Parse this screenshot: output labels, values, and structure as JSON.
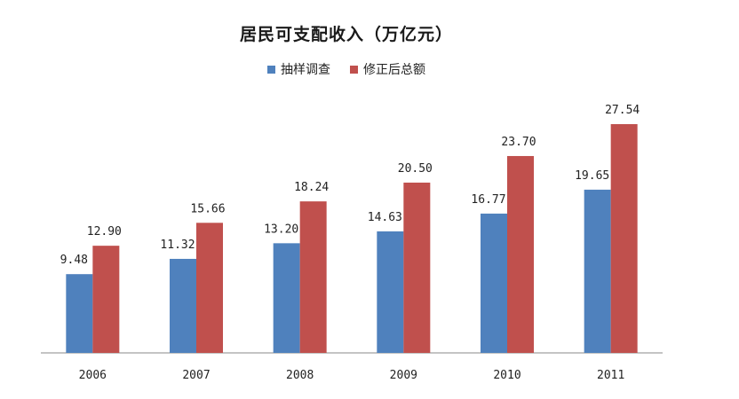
{
  "chart_data": {
    "type": "bar",
    "title": "居民可支配收入（万亿元）",
    "categories": [
      "2006",
      "2007",
      "2008",
      "2009",
      "2010",
      "2011"
    ],
    "series": [
      {
        "name": "抽样调查",
        "color": "#4F81BD",
        "values": [
          9.48,
          11.32,
          13.2,
          14.63,
          16.77,
          19.65
        ],
        "labels": [
          "9.48",
          "11.32",
          "13.20",
          "14.63",
          "16.77",
          "19.65"
        ]
      },
      {
        "name": "修正后总额",
        "color": "#C0504D",
        "values": [
          12.9,
          15.66,
          18.24,
          20.5,
          23.7,
          27.54
        ],
        "labels": [
          "12.90",
          "15.66",
          "18.24",
          "20.50",
          "23.70",
          "27.54"
        ]
      }
    ],
    "ylim": [
      0,
      32
    ],
    "grid": false,
    "legend_position": "top"
  }
}
